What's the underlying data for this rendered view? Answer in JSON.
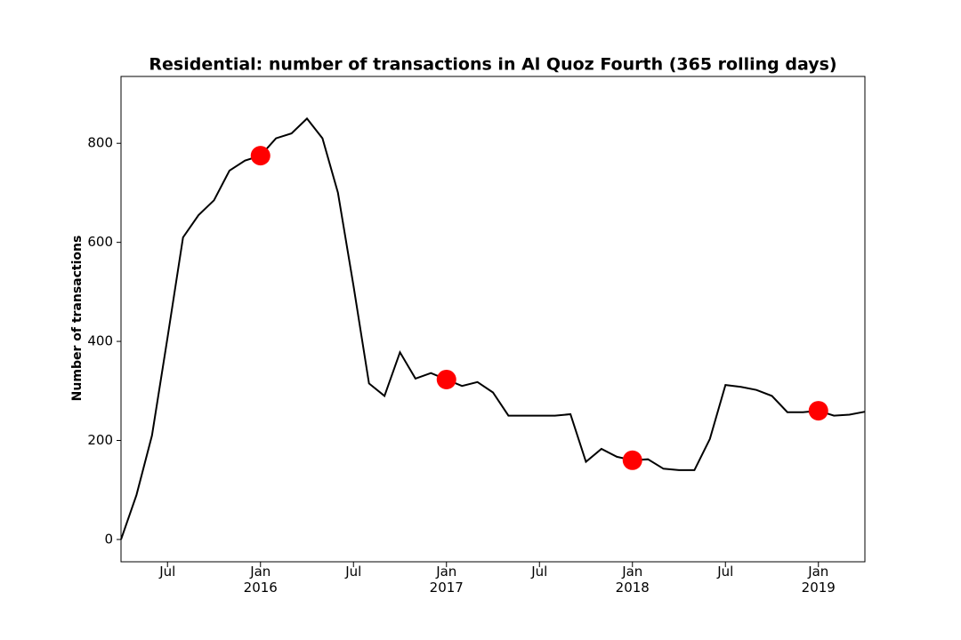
{
  "chart_data": {
    "type": "line",
    "title": "Residential: number of transactions in Al Quoz Fourth (365 rolling days)",
    "y_label": "Number of transactions",
    "x": [
      "2015-04",
      "2015-05",
      "2015-06",
      "2015-07",
      "2015-08",
      "2015-09",
      "2015-10",
      "2015-11",
      "2015-12",
      "2016-01",
      "2016-02",
      "2016-03",
      "2016-04",
      "2016-05",
      "2016-06",
      "2016-07",
      "2016-08",
      "2016-09",
      "2016-10",
      "2016-11",
      "2016-12",
      "2017-01",
      "2017-02",
      "2017-03",
      "2017-04",
      "2017-05",
      "2017-06",
      "2017-07",
      "2017-08",
      "2017-09",
      "2017-10",
      "2017-11",
      "2017-12",
      "2018-01",
      "2018-02",
      "2018-03",
      "2018-04",
      "2018-05",
      "2018-06",
      "2018-07",
      "2018-08",
      "2018-09",
      "2018-10",
      "2018-11",
      "2018-12",
      "2019-01",
      "2019-02",
      "2019-03",
      "2019-04"
    ],
    "series": [
      {
        "color": "#000000",
        "values": [
          0,
          90,
          210,
          408,
          610,
          655,
          685,
          745,
          765,
          775,
          810,
          820,
          850,
          810,
          700,
          512,
          315,
          290,
          378,
          325,
          336,
          323,
          310,
          318,
          297,
          250,
          250,
          250,
          250,
          253,
          157,
          183,
          167,
          160,
          162,
          143,
          140,
          140,
          203,
          312,
          308,
          302,
          290,
          257,
          257,
          260,
          250,
          252,
          258
        ]
      }
    ],
    "markers": {
      "color": "#ff0000",
      "x": [
        "2016-01",
        "2017-01",
        "2018-01",
        "2019-01"
      ],
      "values": [
        775,
        323,
        160,
        260
      ]
    },
    "xlim": [
      "2015-04",
      "2019-04"
    ],
    "ylim": [
      -45,
      935
    ],
    "yticks": [
      0,
      200,
      400,
      600,
      800
    ],
    "xticks": [
      {
        "value": "2015-07",
        "label": "Jul"
      },
      {
        "value": "2016-01",
        "label": "Jan\n2016"
      },
      {
        "value": "2016-07",
        "label": "Jul"
      },
      {
        "value": "2017-01",
        "label": "Jan\n2017"
      },
      {
        "value": "2017-07",
        "label": "Jul"
      },
      {
        "value": "2018-01",
        "label": "Jan\n2018"
      },
      {
        "value": "2018-07",
        "label": "Jul"
      },
      {
        "value": "2019-01",
        "label": "Jan\n2019"
      }
    ]
  }
}
